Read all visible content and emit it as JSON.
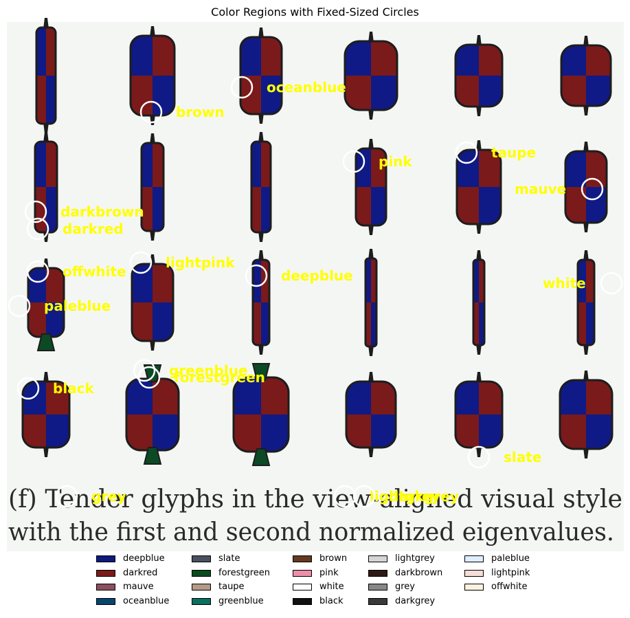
{
  "chart_data": {
    "type": "other",
    "title": "Color Regions with Fixed-Sized Circles",
    "image_caption_lines": [
      "(f) Tender glyphs in the view-aligned visual style",
      "with the first and second normalized eigenvalues."
    ],
    "glyph_colors": {
      "blue": "#0f1a86",
      "red": "#7a1a1a",
      "outline": "#1d1d1d",
      "green": "#0b4a24",
      "background": "#f4f6f4"
    },
    "labels": [
      {
        "name": "oceanblue",
        "color": "#ffff00"
      },
      {
        "name": "brown",
        "color": "#ffff00"
      },
      {
        "name": "pink",
        "color": "#ffff00"
      },
      {
        "name": "taupe",
        "color": "#ffff00"
      },
      {
        "name": "mauve",
        "color": "#ffff00"
      },
      {
        "name": "darkbrown",
        "color": "#ffff00"
      },
      {
        "name": "darkred",
        "color": "#ffff00"
      },
      {
        "name": "offwhite",
        "color": "#ffff00"
      },
      {
        "name": "lightpink",
        "color": "#ffff00"
      },
      {
        "name": "deepblue",
        "color": "#ffff00"
      },
      {
        "name": "white",
        "color": "#ffff00"
      },
      {
        "name": "paleblue",
        "color": "#ffff00"
      },
      {
        "name": "greenblue",
        "color": "#ffff00"
      },
      {
        "name": "forestgreen",
        "color": "#ffff00"
      },
      {
        "name": "black",
        "color": "#ffff00"
      },
      {
        "name": "slate",
        "color": "#ffff00"
      },
      {
        "name": "grey",
        "color": "#ffff00"
      },
      {
        "name": "lightgrey",
        "color": "#ffff00"
      },
      {
        "name": "darkgrey",
        "color": "#ffff00"
      }
    ],
    "legend": [
      {
        "name": "deepblue",
        "color": "#0f1a7a"
      },
      {
        "name": "darkred",
        "color": "#7a1a1a"
      },
      {
        "name": "mauve",
        "color": "#8a5060"
      },
      {
        "name": "oceanblue",
        "color": "#08456e"
      },
      {
        "name": "slate",
        "color": "#4a5060"
      },
      {
        "name": "forestgreen",
        "color": "#0b4a1f"
      },
      {
        "name": "taupe",
        "color": "#b59a85"
      },
      {
        "name": "greenblue",
        "color": "#0a7060"
      },
      {
        "name": "brown",
        "color": "#653a20"
      },
      {
        "name": "pink",
        "color": "#ee8faa"
      },
      {
        "name": "white",
        "color": "#ffffff"
      },
      {
        "name": "black",
        "color": "#111111"
      },
      {
        "name": "lightgrey",
        "color": "#d5d5d5"
      },
      {
        "name": "darkbrown",
        "color": "#2e1a14"
      },
      {
        "name": "grey",
        "color": "#888888"
      },
      {
        "name": "darkgrey",
        "color": "#3a3a3a"
      },
      {
        "name": "paleblue",
        "color": "#dfeeff"
      },
      {
        "name": "lightpink",
        "color": "#f5ddd8"
      },
      {
        "name": "offwhite",
        "color": "#fbf3e0"
      }
    ]
  }
}
